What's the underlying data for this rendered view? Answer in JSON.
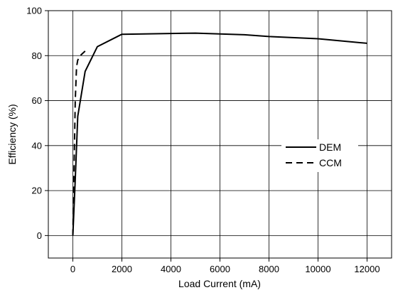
{
  "chart_data": {
    "type": "line",
    "xlabel": "Load Current (mA)",
    "ylabel": "Efficiency (%)",
    "xlim": [
      -1000,
      13000
    ],
    "ylim": [
      -10,
      100
    ],
    "x_ticks": [
      0,
      2000,
      4000,
      6000,
      8000,
      10000,
      12000
    ],
    "y_ticks": [
      0,
      20,
      40,
      60,
      80,
      100
    ],
    "x_tick_labels": [
      "0",
      "2000",
      "4000",
      "6000",
      "8000",
      "10000",
      "12000"
    ],
    "y_tick_labels": [
      "0",
      "20",
      "40",
      "60",
      "80",
      "100"
    ],
    "grid": true,
    "legend_position": "center-right",
    "series": [
      {
        "name": "DEM",
        "style": "solid",
        "color": "#000000",
        "points": [
          [
            0,
            0
          ],
          [
            100,
            25
          ],
          [
            200,
            53
          ],
          [
            500,
            73
          ],
          [
            1000,
            84
          ],
          [
            2000,
            89.5
          ],
          [
            5000,
            90
          ],
          [
            7000,
            89.3
          ],
          [
            8000,
            88.5
          ],
          [
            10000,
            87.5
          ],
          [
            12000,
            85.5
          ]
        ]
      },
      {
        "name": "CCM",
        "style": "dashed",
        "color": "#000000",
        "points": [
          [
            0,
            0
          ],
          [
            50,
            30
          ],
          [
            100,
            60
          ],
          [
            150,
            75
          ],
          [
            200,
            78
          ],
          [
            300,
            80
          ],
          [
            500,
            82
          ]
        ]
      }
    ]
  }
}
